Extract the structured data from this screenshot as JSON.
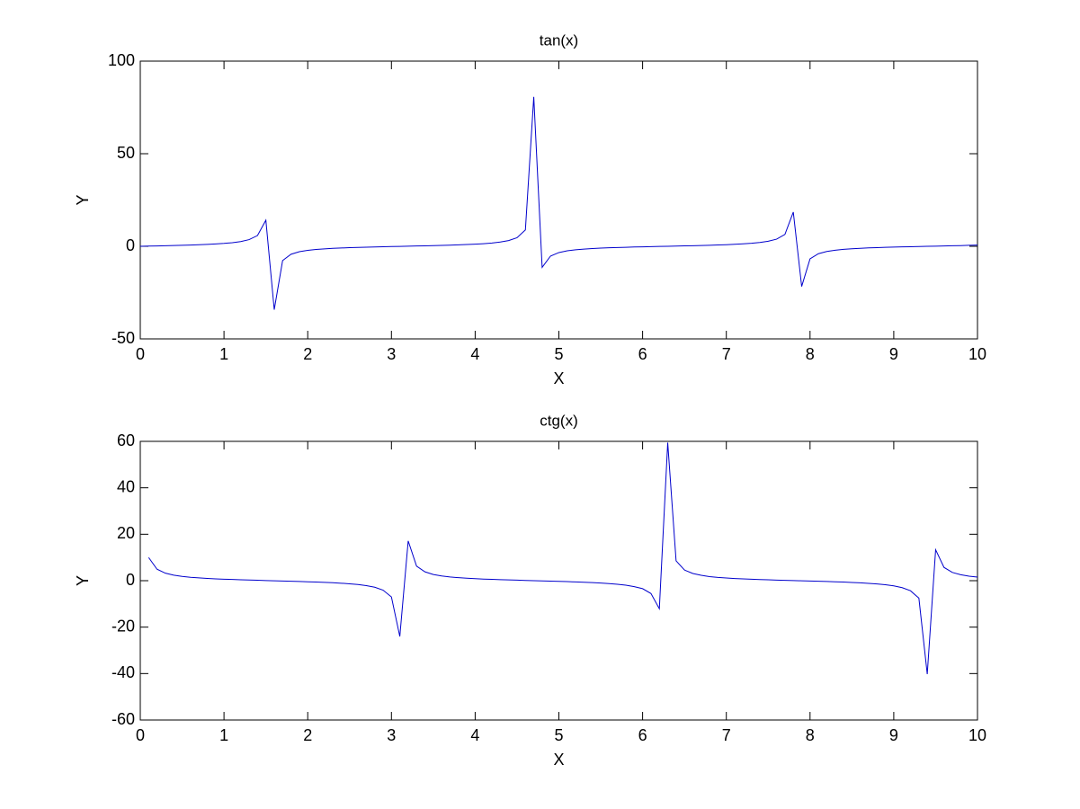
{
  "chart_data": [
    {
      "type": "line",
      "title": "tan(x)",
      "xlabel": "X",
      "ylabel": "Y",
      "color": "#0000cc",
      "x": [
        0,
        0.1,
        0.2,
        0.3,
        0.4,
        0.5,
        0.6,
        0.7,
        0.8,
        0.9,
        1,
        1.1,
        1.2,
        1.3,
        1.4,
        1.5,
        1.6,
        1.7,
        1.8,
        1.9,
        2,
        2.1,
        2.2,
        2.3,
        2.4,
        2.5,
        2.6,
        2.7,
        2.8,
        2.9,
        3,
        3.1,
        3.2,
        3.3,
        3.4,
        3.5,
        3.6,
        3.7,
        3.8,
        3.9,
        4,
        4.1,
        4.2,
        4.3,
        4.4,
        4.5,
        4.6,
        4.7,
        4.8,
        4.9,
        5,
        5.1,
        5.2,
        5.3,
        5.4,
        5.5,
        5.6,
        5.7,
        5.8,
        5.9,
        6,
        6.1,
        6.2,
        6.3,
        6.4,
        6.5,
        6.6,
        6.7,
        6.8,
        6.9,
        7,
        7.1,
        7.2,
        7.3,
        7.4,
        7.5,
        7.6,
        7.7,
        7.8,
        7.9,
        8,
        8.1,
        8.2,
        8.3,
        8.4,
        8.5,
        8.6,
        8.7,
        8.8,
        8.9,
        9,
        9.1,
        9.2,
        9.3,
        9.4,
        9.5,
        9.6,
        9.7,
        9.8,
        9.9,
        10
      ],
      "values": [
        0,
        0.1,
        0.2,
        0.31,
        0.42,
        0.55,
        0.68,
        0.84,
        1.03,
        1.26,
        1.56,
        1.96,
        2.57,
        3.6,
        5.8,
        14.1,
        -34.23,
        -7.7,
        -4.29,
        -2.93,
        -2.19,
        -1.71,
        -1.37,
        -1.12,
        -0.92,
        -0.75,
        -0.6,
        -0.47,
        -0.36,
        -0.24,
        -0.14,
        -0.04,
        0.06,
        0.16,
        0.26,
        0.37,
        0.49,
        0.62,
        0.77,
        0.95,
        1.16,
        1.42,
        1.78,
        2.29,
        3.1,
        4.64,
        8.86,
        80.71,
        -11.38,
        -5.27,
        -3.38,
        -2.45,
        -1.89,
        -1.5,
        -1.22,
        -0.99,
        -0.81,
        -0.65,
        -0.52,
        -0.39,
        -0.29,
        -0.18,
        -0.08,
        0.02,
        0.12,
        0.22,
        0.33,
        0.44,
        0.57,
        0.71,
        0.87,
        1.07,
        1.31,
        1.62,
        2.05,
        2.71,
        3.85,
        6.43,
        18.5,
        -21.7,
        -6.8,
        -4.01,
        -2.8,
        -2.11,
        -1.66,
        -1.33,
        -1.08,
        -0.88,
        -0.71,
        -0.57,
        -0.45,
        -0.33,
        -0.23,
        -0.13,
        -0.03,
        0.08,
        0.18,
        0.28,
        0.39,
        0.52,
        0.65
      ],
      "xlim": [
        0,
        10
      ],
      "xticks": [
        0,
        1,
        2,
        3,
        4,
        5,
        6,
        7,
        8,
        9,
        10
      ],
      "ylim": [
        -50,
        100
      ],
      "yticks": [
        -50,
        0,
        50,
        100
      ]
    },
    {
      "type": "line",
      "title": "ctg(x)",
      "xlabel": "X",
      "ylabel": "Y",
      "color": "#0000cc",
      "x": [
        0.1,
        0.2,
        0.3,
        0.4,
        0.5,
        0.6,
        0.7,
        0.8,
        0.9,
        1,
        1.1,
        1.2,
        1.3,
        1.4,
        1.5,
        1.6,
        1.7,
        1.8,
        1.9,
        2,
        2.1,
        2.2,
        2.3,
        2.4,
        2.5,
        2.6,
        2.7,
        2.8,
        2.9,
        3,
        3.1,
        3.2,
        3.3,
        3.4,
        3.5,
        3.6,
        3.7,
        3.8,
        3.9,
        4,
        4.1,
        4.2,
        4.3,
        4.4,
        4.5,
        4.6,
        4.7,
        4.8,
        4.9,
        5,
        5.1,
        5.2,
        5.3,
        5.4,
        5.5,
        5.6,
        5.7,
        5.8,
        5.9,
        6,
        6.1,
        6.2,
        6.3,
        6.4,
        6.5,
        6.6,
        6.7,
        6.8,
        6.9,
        7,
        7.1,
        7.2,
        7.3,
        7.4,
        7.5,
        7.6,
        7.7,
        7.8,
        7.9,
        8,
        8.1,
        8.2,
        8.3,
        8.4,
        8.5,
        8.6,
        8.7,
        8.8,
        8.9,
        9,
        9.1,
        9.2,
        9.3,
        9.4,
        9.5,
        9.6,
        9.7,
        9.8,
        9.9,
        10
      ],
      "values": [
        9.97,
        4.93,
        3.23,
        2.37,
        1.83,
        1.46,
        1.19,
        0.97,
        0.79,
        0.64,
        0.51,
        0.39,
        0.28,
        0.17,
        0.07,
        -0.03,
        -0.13,
        -0.23,
        -0.34,
        -0.46,
        -0.58,
        -0.73,
        -0.89,
        -1.09,
        -1.34,
        -1.66,
        -2.11,
        -2.81,
        -4.07,
        -7.02,
        -24.03,
        17.13,
        6.26,
        3.81,
        2.67,
        2.03,
        1.61,
        1.3,
        1.06,
        0.86,
        0.7,
        0.56,
        0.44,
        0.32,
        0.22,
        0.11,
        0.01,
        -0.09,
        -0.19,
        -0.3,
        -0.41,
        -0.53,
        -0.67,
        -0.82,
        -1.01,
        -1.24,
        -1.53,
        -1.94,
        -2.56,
        -3.44,
        -5.52,
        -12.07,
        59.47,
        8.53,
        4.59,
        3.11,
        2.32,
        1.76,
        1.4,
        1.15,
        0.93,
        0.76,
        0.62,
        0.49,
        0.37,
        0.26,
        0.16,
        0.05,
        -0.05,
        -0.15,
        -0.25,
        -0.36,
        -0.47,
        -0.6,
        -0.75,
        -0.93,
        -1.14,
        -1.41,
        -1.76,
        -2.21,
        -3,
        -4.34,
        -7.52,
        -40.23,
        13.32,
        5.72,
        3.56,
        2.55,
        1.93,
        1.54
      ],
      "xlim": [
        0,
        10
      ],
      "xticks": [
        0,
        1,
        2,
        3,
        4,
        5,
        6,
        7,
        8,
        9,
        10
      ],
      "ylim": [
        -60,
        60
      ],
      "yticks": [
        -60,
        -40,
        -20,
        0,
        20,
        40,
        60
      ]
    }
  ]
}
